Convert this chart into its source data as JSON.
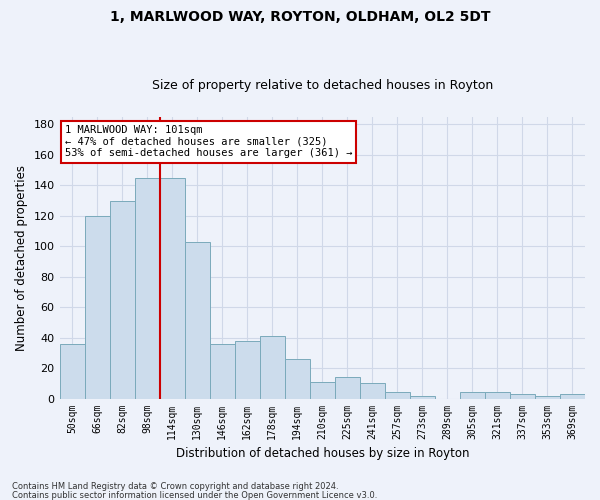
{
  "title": "1, MARLWOOD WAY, ROYTON, OLDHAM, OL2 5DT",
  "subtitle": "Size of property relative to detached houses in Royton",
  "xlabel": "Distribution of detached houses by size in Royton",
  "ylabel": "Number of detached properties",
  "categories": [
    "50sqm",
    "66sqm",
    "82sqm",
    "98sqm",
    "114sqm",
    "130sqm",
    "146sqm",
    "162sqm",
    "178sqm",
    "194sqm",
    "210sqm",
    "225sqm",
    "241sqm",
    "257sqm",
    "273sqm",
    "289sqm",
    "305sqm",
    "321sqm",
    "337sqm",
    "353sqm",
    "369sqm"
  ],
  "values": [
    36,
    120,
    130,
    145,
    145,
    103,
    36,
    38,
    41,
    26,
    11,
    14,
    10,
    4,
    2,
    0,
    4,
    4,
    3,
    2,
    3
  ],
  "bar_color": "#ccdcec",
  "bar_edge_color": "#7aaabb",
  "grid_color": "#d0d8e8",
  "background_color": "#eef2fa",
  "red_line_x": 3.5,
  "annotation_line1": "1 MARLWOOD WAY: 101sqm",
  "annotation_line2": "← 47% of detached houses are smaller (325)",
  "annotation_line3": "53% of semi-detached houses are larger (361) →",
  "annotation_box_color": "#ffffff",
  "annotation_box_edge_color": "#cc0000",
  "footnote1": "Contains HM Land Registry data © Crown copyright and database right 2024.",
  "footnote2": "Contains public sector information licensed under the Open Government Licence v3.0.",
  "ylim": [
    0,
    185
  ],
  "yticks": [
    0,
    20,
    40,
    60,
    80,
    100,
    120,
    140,
    160,
    180
  ],
  "title_fontsize": 10,
  "subtitle_fontsize": 9
}
